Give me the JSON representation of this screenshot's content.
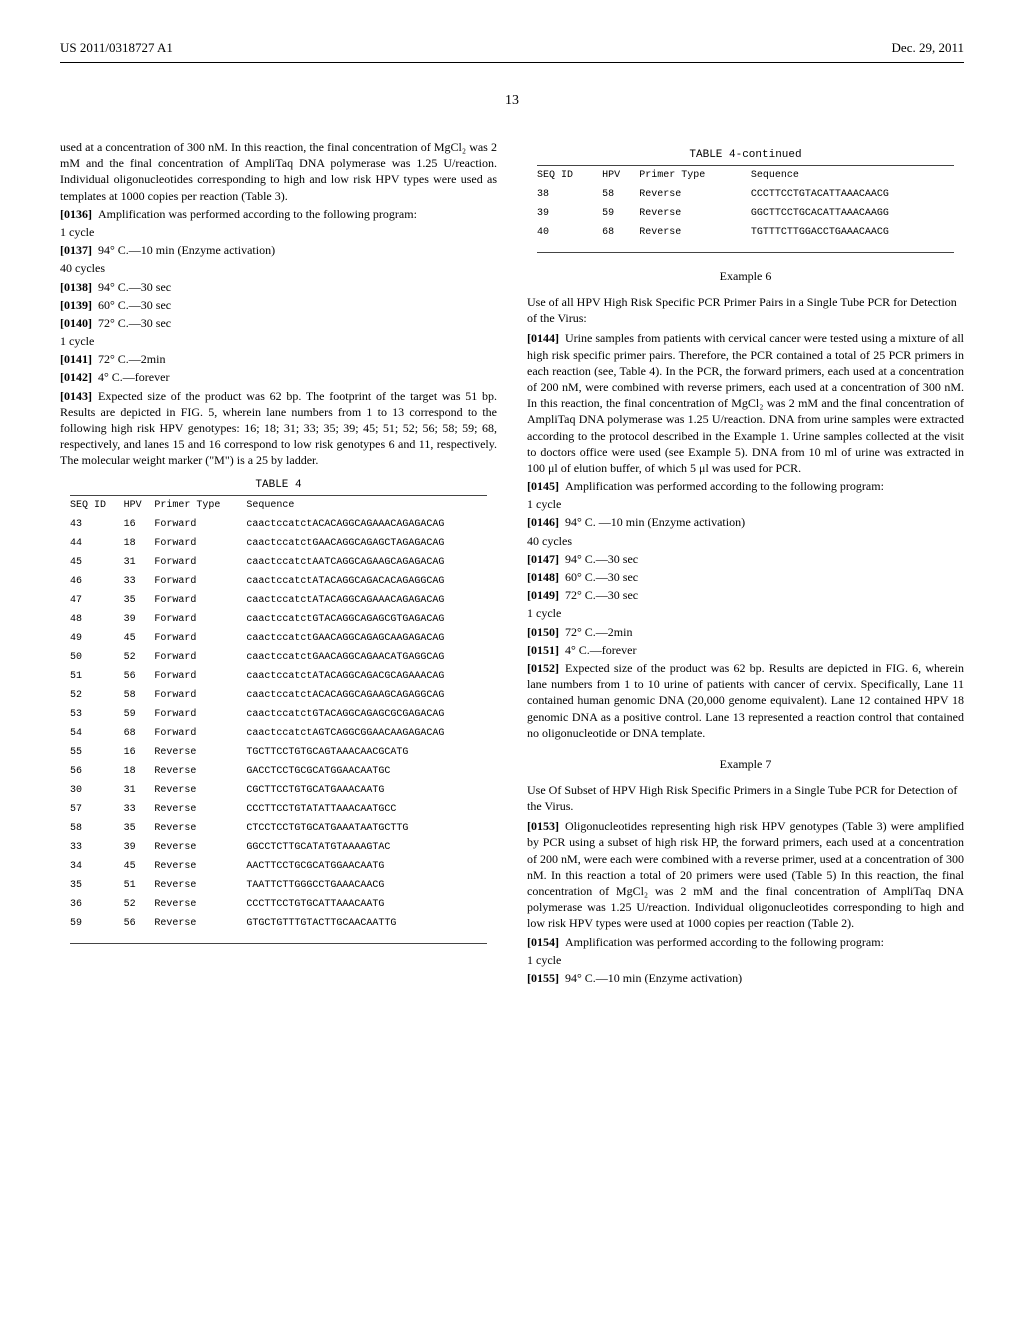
{
  "header": {
    "left": "US 2011/0318727 A1",
    "right": "Dec. 29, 2011"
  },
  "page_number": "13",
  "left_column": {
    "intro": "used at a concentration of 300 nM. In this reaction, the final concentration of MgCl₂ was 2 mM and the final concentration of AmpliTaq DNA polymerase was 1.25 U/reaction. Individual oligonucleotides corresponding to high and low risk HPV types were used as templates at 1000 copies per reaction (Table 3).",
    "p0136": "Amplification was performed according to the following program:",
    "cycle1": "1 cycle",
    "p0137": "94° C.—10 min (Enzyme activation)",
    "cycle40": "40 cycles",
    "p0138": "94° C.—30 sec",
    "p0139": "60° C.—30 sec",
    "p0140": "72° C.—30 sec",
    "cycle1b": "1 cycle",
    "p0141": "72° C.—2min",
    "p0142": "4° C.—forever",
    "p0143": "Expected size of the product was 62 bp. The footprint of the target was 51 bp. Results are depicted in FIG. 5, wherein lane numbers from 1 to 13 correspond to the following high risk HPV genotypes: 16; 18; 31; 33; 35; 39; 45; 51; 52; 56; 58; 59; 68, respectively, and lanes 15 and 16 correspond to low risk genotypes 6 and 11, respectively. The molecular weight marker (\"M\") is a 25 by ladder."
  },
  "table4": {
    "title": "TABLE 4",
    "headers": [
      "SEQ\nID",
      "HPV",
      "Primer\nType",
      "Sequence"
    ],
    "rows": [
      [
        "43",
        "16",
        "Forward",
        "caactccatctACACAGGCAGAAACAGAGACAG"
      ],
      [
        "44",
        "18",
        "Forward",
        "caactccatctGAACAGGCAGAGCTAGAGACAG"
      ],
      [
        "45",
        "31",
        "Forward",
        "caactccatctAATCAGGCAGAAGCAGAGACAG"
      ],
      [
        "46",
        "33",
        "Forward",
        "caactccatctATACAGGCAGACACAGAGGCAG"
      ],
      [
        "47",
        "35",
        "Forward",
        "caactccatctATACAGGCAGAAACAGAGACAG"
      ],
      [
        "48",
        "39",
        "Forward",
        "caactccatctGTACAGGCAGAGCGTGAGACAG"
      ],
      [
        "49",
        "45",
        "Forward",
        "caactccatctGAACAGGCAGAGCAAGAGACAG"
      ],
      [
        "50",
        "52",
        "Forward",
        "caactccatctGAACAGGCAGAACATGAGGCAG"
      ],
      [
        "51",
        "56",
        "Forward",
        "caactccatctATACAGGCAGACGCAGAAACAG"
      ],
      [
        "52",
        "58",
        "Forward",
        "caactccatctACACAGGCAGAAGCAGAGGCAG"
      ],
      [
        "53",
        "59",
        "Forward",
        "caactccatctGTACAGGCAGAGCGCGAGACAG"
      ],
      [
        "54",
        "68",
        "Forward",
        "caactccatctAGTCAGGCGGAACAAGAGACAG"
      ],
      [
        "55",
        "16",
        "Reverse",
        "TGCTTCCTGTGCAGTAAACAACGCATG"
      ],
      [
        "56",
        "18",
        "Reverse",
        "GACCTCCTGCGCATGGAACAATGC"
      ],
      [
        "30",
        "31",
        "Reverse",
        "CGCTTCCTGTGCATGAAACAATG"
      ],
      [
        "57",
        "33",
        "Reverse",
        "CCCTTCCTGTATATTAAACAATGCC"
      ],
      [
        "58",
        "35",
        "Reverse",
        "CTCCTCCTGTGCATGAAATAATGCTTG"
      ],
      [
        "33",
        "39",
        "Reverse",
        "GGCCTCTTGCATATGTAAAAGTAC"
      ],
      [
        "34",
        "45",
        "Reverse",
        "AACTTCCTGCGCATGGAACAATG"
      ],
      [
        "35",
        "51",
        "Reverse",
        "TAATTCTTGGGCCTGAAACAACG"
      ],
      [
        "36",
        "52",
        "Reverse",
        "CCCTTCCTGTGCATTAAACAATG"
      ],
      [
        "59",
        "56",
        "Reverse",
        "GTGCTGTTTGTACTTGCAACAATTG"
      ]
    ]
  },
  "table4cont": {
    "title": "TABLE 4-continued",
    "headers": [
      "SEQ\nID",
      "HPV",
      "Primer\nType",
      "Sequence"
    ],
    "rows": [
      [
        "38",
        "58",
        "Reverse",
        "CCCTTCCTGTACATTAAACAACG"
      ],
      [
        "39",
        "59",
        "Reverse",
        "GGCTTCCTGCACATTAAACAAGG"
      ],
      [
        "40",
        "68",
        "Reverse",
        "TGTTTCTTGGACCTGAAACAACG"
      ]
    ]
  },
  "example6": {
    "title": "Example 6",
    "subtitle": "Use of all HPV High Risk Specific PCR Primer Pairs in a Single Tube PCR for Detection of the Virus:",
    "p0144": "Urine samples from patients with cervical cancer were tested using a mixture of all high risk specific primer pairs. Therefore, the PCR contained a total of 25 PCR primers in each reaction (see, Table 4). In the PCR, the forward primers, each used at a concentration of 200 nM, were combined with reverse primers, each used at a concentration of 300 nM. In this reaction, the final concentration of MgCl₂ was 2 mM and the final concentration of AmpliTaq DNA polymerase was 1.25 U/reaction. DNA from urine samples were extracted according to the protocol described in the Example 1. Urine samples collected at the visit to doctors office were used (see Example 5). DNA from 10 ml of urine was extracted in 100 μl of elution buffer, of which 5 μl was used for PCR.",
    "p0145": "Amplification was performed according to the following program:",
    "cycle1": "1 cycle",
    "p0146": "94° C. —10 min (Enzyme activation)",
    "cycle40": "40 cycles",
    "p0147": "94° C.—30 sec",
    "p0148": "60° C.—30 sec",
    "p0149": "72° C.—30 sec",
    "cycle1b": "1 cycle",
    "p0150": "72° C.—2min",
    "p0151": "4° C.—forever",
    "p0152": "Expected size of the product was 62 bp. Results are depicted in FIG. 6, wherein lane numbers from 1 to 10 urine of patients with cancer of cervix. Specifically, Lane 11 contained human genomic DNA (20,000 genome equivalent). Lane 12 contained HPV 18 genomic DNA as a positive control. Lane 13 represented a reaction control that contained no oligonucleotide or DNA template."
  },
  "example7": {
    "title": "Example 7",
    "subtitle": "Use Of Subset of HPV High Risk Specific Primers in a Single Tube PCR for Detection of the Virus.",
    "p0153": "Oligonucleotides representing high risk HPV genotypes (Table 3) were amplified by PCR using a subset of high risk HP, the forward primers, each used at a concentration of 200 nM, were each were combined with a reverse primer, used at a concentration of 300 nM. In this reaction a total of 20 primers were used (Table 5) In this reaction, the final concentration of MgCl₂ was 2 mM and the final concentration of AmpliTaq DNA polymerase was 1.25 U/reaction. Individual oligonucleotides corresponding to high and low risk HPV types were used at 1000 copies per reaction (Table 2).",
    "p0154": "Amplification was performed according to the following program:",
    "cycle1": "1 cycle",
    "p0155": "94° C.—10 min (Enzyme activation)"
  }
}
